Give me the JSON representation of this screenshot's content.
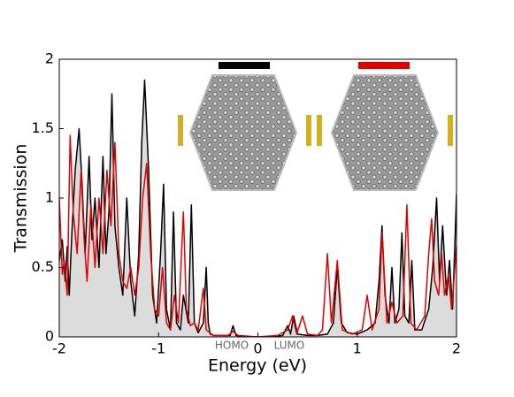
{
  "chart_data": {
    "type": "line",
    "xlabel": "Energy (eV)",
    "ylabel": "Transmission",
    "xlim": [
      -2,
      2
    ],
    "ylim": [
      0,
      2
    ],
    "xticks": [
      -2,
      -1,
      0,
      1,
      2
    ],
    "yticks": [
      0,
      0.5,
      1,
      1.5,
      2
    ],
    "grid": false,
    "annotations": [
      "HOMO",
      "LUMO"
    ],
    "series": [
      {
        "color": "#000000",
        "fill_color": "#dcdcdc",
        "x": [
          -2,
          -1.97,
          -1.94,
          -1.92,
          -1.9,
          -1.87,
          -1.84,
          -1.8,
          -1.77,
          -1.74,
          -1.7,
          -1.67,
          -1.64,
          -1.6,
          -1.56,
          -1.53,
          -1.5,
          -1.47,
          -1.44,
          -1.4,
          -1.36,
          -1.32,
          -1.28,
          -1.24,
          -1.2,
          -1.17,
          -1.14,
          -1.1,
          -1.06,
          -1.02,
          -0.98,
          -0.95,
          -0.92,
          -0.88,
          -0.85,
          -0.82,
          -0.78,
          -0.75,
          -0.7,
          -0.67,
          -0.64,
          -0.6,
          -0.55,
          -0.52,
          -0.5,
          -0.48,
          -0.44,
          -0.35,
          -0.28,
          -0.25,
          -0.22,
          -0.1,
          0,
          0.1,
          0.25,
          0.3,
          0.33,
          0.36,
          0.4,
          0.5,
          0.6,
          0.7,
          0.76,
          0.8,
          0.84,
          0.9,
          1.0,
          1.1,
          1.18,
          1.22,
          1.25,
          1.28,
          1.32,
          1.35,
          1.38,
          1.42,
          1.45,
          1.48,
          1.52,
          1.55,
          1.58,
          1.65,
          1.72,
          1.76,
          1.8,
          1.83,
          1.86,
          1.9,
          1.93,
          1.96,
          1.98,
          2.0
        ],
        "values": [
          0.55,
          0.7,
          0.4,
          0.65,
          0.3,
          0.8,
          1.2,
          1.5,
          1.1,
          0.6,
          1.3,
          0.7,
          1.0,
          0.5,
          1.3,
          0.6,
          0.9,
          1.75,
          0.8,
          0.5,
          0.3,
          1.0,
          0.4,
          0.15,
          0.6,
          1.4,
          1.85,
          1.2,
          0.3,
          0.1,
          0.6,
          1.1,
          0.2,
          0.05,
          0.9,
          0.1,
          0.05,
          0.3,
          0.1,
          0.95,
          0.1,
          0.03,
          0.1,
          0.5,
          0.1,
          0.02,
          0.01,
          0.01,
          0.01,
          0.08,
          0.01,
          0,
          0,
          0,
          0.01,
          0.08,
          0.02,
          0.15,
          0.02,
          0.01,
          0.01,
          0.02,
          0.1,
          0.5,
          0.1,
          0.03,
          0.02,
          0.05,
          0.1,
          0.4,
          0.8,
          0.3,
          0.1,
          0.5,
          0.1,
          0.2,
          0.75,
          0.15,
          0.1,
          0.55,
          0.05,
          0.05,
          0.2,
          0.5,
          1.0,
          0.4,
          0.8,
          0.3,
          0.55,
          0.2,
          0.6,
          1.03
        ]
      },
      {
        "color": "#e00000",
        "x": [
          -2,
          -1.97,
          -1.95,
          -1.92,
          -1.89,
          -1.86,
          -1.82,
          -1.78,
          -1.75,
          -1.72,
          -1.68,
          -1.64,
          -1.6,
          -1.56,
          -1.52,
          -1.48,
          -1.44,
          -1.4,
          -1.36,
          -1.32,
          -1.28,
          -1.24,
          -1.2,
          -1.16,
          -1.12,
          -1.08,
          -1.04,
          -1.0,
          -0.96,
          -0.92,
          -0.88,
          -0.84,
          -0.8,
          -0.75,
          -0.72,
          -0.68,
          -0.64,
          -0.6,
          -0.55,
          -0.52,
          -0.45,
          -0.3,
          -0.25,
          -0.2,
          0,
          0.2,
          0.3,
          0.35,
          0.39,
          0.45,
          0.5,
          0.6,
          0.65,
          0.7,
          0.74,
          0.8,
          0.85,
          0.95,
          1.05,
          1.1,
          1.15,
          1.22,
          1.25,
          1.3,
          1.35,
          1.4,
          1.46,
          1.5,
          1.54,
          1.6,
          1.68,
          1.72,
          1.75,
          1.78,
          1.82,
          1.85,
          1.88,
          1.92,
          1.95,
          2.0
        ],
        "values": [
          1.0,
          0.45,
          0.55,
          0.3,
          1.45,
          0.9,
          0.6,
          1.2,
          0.7,
          0.4,
          0.95,
          0.5,
          1.0,
          0.6,
          1.2,
          0.8,
          1.4,
          0.6,
          0.4,
          0.35,
          0.5,
          0.3,
          0.5,
          1.0,
          1.25,
          0.6,
          0.2,
          0.15,
          0.5,
          0.1,
          0.05,
          0.3,
          0.1,
          0.9,
          0.2,
          0.08,
          0.1,
          0.05,
          0.35,
          0.05,
          0.01,
          0.01,
          0.04,
          0.01,
          0,
          0.01,
          0.05,
          0.15,
          0.02,
          0.15,
          0.02,
          0.01,
          0.05,
          0.6,
          0.1,
          0.55,
          0.05,
          0.02,
          0.05,
          0.3,
          0.05,
          0.2,
          0.75,
          0.1,
          0.25,
          0.1,
          0.15,
          0.95,
          0.1,
          0.05,
          0.15,
          0.6,
          0.85,
          0.4,
          0.3,
          0.6,
          0.3,
          0.45,
          0.2,
          0.65
        ]
      }
    ]
  }
}
